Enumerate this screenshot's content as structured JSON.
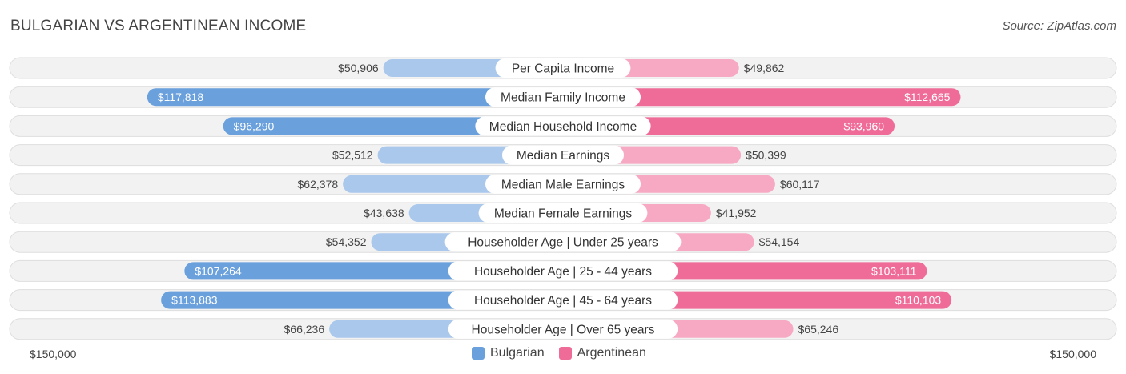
{
  "header": {
    "title": "BULGARIAN VS ARGENTINEAN INCOME",
    "source": "Source: ZipAtlas.com"
  },
  "axis": {
    "left_label": "$150,000",
    "right_label": "$150,000"
  },
  "legend": {
    "items": [
      {
        "label": "Bulgarian",
        "color": "#6aa0dc"
      },
      {
        "label": "Argentinean",
        "color": "#f06c98"
      }
    ]
  },
  "chart_data": {
    "type": "bar",
    "title": "BULGARIAN VS ARGENTINEAN INCOME",
    "orientation": "diverging-horizontal",
    "xlim": [
      0,
      150000
    ],
    "categories": [
      "Per Capita Income",
      "Median Family Income",
      "Median Household Income",
      "Median Earnings",
      "Median Male Earnings",
      "Median Female Earnings",
      "Householder Age | Under 25 years",
      "Householder Age | 25 - 44 years",
      "Householder Age | 45 - 64 years",
      "Householder Age | Over 65 years"
    ],
    "series": [
      {
        "name": "Bulgarian",
        "color": "#6aa0dc",
        "light_color": "#a9c8ec",
        "values": [
          50906,
          117818,
          96290,
          52512,
          62378,
          43638,
          54352,
          107264,
          113883,
          66236
        ],
        "labels": [
          "$50,906",
          "$117,818",
          "$96,290",
          "$52,512",
          "$62,378",
          "$43,638",
          "$54,352",
          "$107,264",
          "$113,883",
          "$66,236"
        ]
      },
      {
        "name": "Argentinean",
        "color": "#f06c98",
        "light_color": "#f7a9c3",
        "values": [
          49862,
          112665,
          93960,
          50399,
          60117,
          41952,
          54154,
          103111,
          110103,
          65246
        ],
        "labels": [
          "$49,862",
          "$112,665",
          "$93,960",
          "$50,399",
          "$60,117",
          "$41,952",
          "$54,154",
          "$103,111",
          "$110,103",
          "$65,246"
        ]
      }
    ],
    "legend_position": "bottom-center"
  }
}
